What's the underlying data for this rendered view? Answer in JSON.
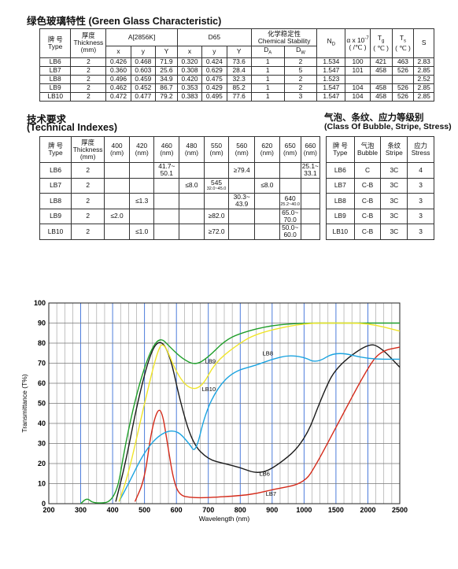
{
  "green": {
    "title": "绿色玻璃特性 (Green Glass Characteristic)",
    "h": {
      "type_cn": "牌 号",
      "type_en": "Type",
      "thick_cn": "厚度",
      "thick_en": "Thickness",
      "thick_unit": "(mm)",
      "a2856": "A[2856K]",
      "d65": "D65",
      "chem_cn": "化学稳定性",
      "chem_en": "Chemical Stability",
      "x": "x",
      "y": "y",
      "Y": "Y",
      "da": "DA",
      "dw": "DW",
      "nd": "ND",
      "alpha": "α x 10⁻⁷",
      "alpha_unit": "( /℃ )",
      "tg": "Tg",
      "tg_unit": "( ℃ )",
      "ts": "Ts",
      "ts_unit": "( ℃ )",
      "s": "S"
    },
    "rows": [
      [
        "LB6",
        "2",
        "0.426",
        "0.468",
        "71.9",
        "0.320",
        "0.424",
        "73.6",
        "1",
        "2",
        "1.534",
        "100",
        "421",
        "463",
        "2.83"
      ],
      [
        "LB7",
        "2",
        "0.360",
        "0.603",
        "25.6",
        "0.308",
        "0.629",
        "28.4",
        "1",
        "5",
        "1.547",
        "101",
        "458",
        "526",
        "2.85"
      ],
      [
        "LB8",
        "2",
        "0.496",
        "0.459",
        "34.9",
        "0.420",
        "0.475",
        "32.3",
        "1",
        "2",
        "1.523",
        "",
        "",
        "",
        "2.52"
      ],
      [
        "LB9",
        "2",
        "0.462",
        "0.452",
        "86.7",
        "0.353",
        "0.429",
        "85.2",
        "1",
        "2",
        "1.547",
        "104",
        "458",
        "526",
        "2.85"
      ],
      [
        "LB10",
        "2",
        "0.472",
        "0.477",
        "79.2",
        "0.383",
        "0.495",
        "77.6",
        "1",
        "3",
        "1.547",
        "104",
        "458",
        "526",
        "2.85"
      ]
    ]
  },
  "tech": {
    "title_cn": "技术要求",
    "title_en": "(Technical Indexes)",
    "h": {
      "type_cn": "牌 号",
      "type_en": "Type",
      "thick_cn": "厚度",
      "thick_en": "Thickness",
      "thick_unit": "(mm)"
    },
    "wavelengths": [
      "400",
      "420",
      "460",
      "480",
      "550",
      "560",
      "620",
      "650",
      "660"
    ],
    "unit": "(nm)",
    "rows": [
      {
        "type": "LB6",
        "thick": "2",
        "c400": "",
        "c420": "",
        "c460": "41.7~ 50.1",
        "c480": "",
        "c550": "",
        "c560": "≥79.4",
        "c620": "",
        "c650": "",
        "c660": "25.1~ 33.1"
      },
      {
        "type": "LB7",
        "thick": "2",
        "c400": "",
        "c420": "",
        "c460": "",
        "c480": "≤8.0",
        "c550": "545",
        "c550s": "32.0~45.0",
        "c560": "",
        "c620": "≤8.0",
        "c650": "",
        "c660": ""
      },
      {
        "type": "LB8",
        "thick": "2",
        "c400": "",
        "c420": "≤1.3",
        "c460": "",
        "c480": "",
        "c550": "",
        "c560": "30.3~ 43.9",
        "c620": "",
        "c650": "640",
        "c650s": "25.2~40.0",
        "c660": ""
      },
      {
        "type": "LB9",
        "thick": "2",
        "c400": "≤2.0",
        "c420": "",
        "c460": "",
        "c480": "",
        "c550": "≥82.0",
        "c560": "",
        "c620": "",
        "c650": "65.0~ 70.0",
        "c660": ""
      },
      {
        "type": "LB10",
        "thick": "2",
        "c400": "",
        "c420": "≤1.0",
        "c460": "",
        "c480": "",
        "c550": "≥72.0",
        "c560": "",
        "c620": "",
        "c650": "50.0~ 60.0",
        "c660": ""
      }
    ]
  },
  "bubble": {
    "title_cn": "气泡、条纹、应力等级别",
    "title_en": "(Class Of Bubble, Stripe, Stress)",
    "h": {
      "type_cn": "牌 号",
      "type_en": "Type",
      "bubble_cn": "气泡",
      "bubble_en": "Bubble",
      "stripe_cn": "条纹",
      "stripe_en": "Stripe",
      "stress_cn": "应力",
      "stress_en": "Stress"
    },
    "rows": [
      [
        "LB6",
        "C",
        "3C",
        "4"
      ],
      [
        "LB7",
        "C-B",
        "3C",
        "3"
      ],
      [
        "LB8",
        "C-B",
        "3C",
        "3"
      ],
      [
        "LB9",
        "C-B",
        "3C",
        "3"
      ],
      [
        "LB10",
        "C-B",
        "3C",
        "3"
      ]
    ]
  },
  "chart_data": {
    "type": "line",
    "xlabel": "Wavelength (nm)",
    "ylabel": "Transmittance (T%)",
    "x_ticks": [
      "200",
      "300",
      "400",
      "500",
      "600",
      "700",
      "800",
      "900",
      "1000",
      "1500",
      "2000",
      "2500"
    ],
    "y_ticks": [
      "0",
      "10",
      "20",
      "30",
      "40",
      "50",
      "60",
      "70",
      "80",
      "90",
      "100"
    ],
    "ylim": [
      0,
      100
    ],
    "grid": true,
    "series": [
      {
        "name": "LB6",
        "color": "#1a1a1a",
        "points": [
          [
            410,
            1
          ],
          [
            440,
            20
          ],
          [
            480,
            52
          ],
          [
            520,
            76
          ],
          [
            550,
            82
          ],
          [
            580,
            74
          ],
          [
            610,
            52
          ],
          [
            650,
            30
          ],
          [
            700,
            22
          ],
          [
            750,
            20
          ],
          [
            800,
            18
          ],
          [
            850,
            15
          ],
          [
            900,
            17
          ],
          [
            1000,
            30
          ],
          [
            1300,
            55
          ],
          [
            1500,
            68
          ],
          [
            2000,
            80
          ],
          [
            2200,
            78
          ],
          [
            2500,
            68
          ]
        ]
      },
      {
        "name": "LB7",
        "color": "#d42a1a",
        "points": [
          [
            470,
            1
          ],
          [
            500,
            12
          ],
          [
            520,
            35
          ],
          [
            540,
            47
          ],
          [
            555,
            46
          ],
          [
            570,
            32
          ],
          [
            590,
            12
          ],
          [
            610,
            4
          ],
          [
            650,
            3
          ],
          [
            700,
            3
          ],
          [
            800,
            4
          ],
          [
            850,
            5
          ],
          [
            900,
            7
          ],
          [
            1000,
            10
          ],
          [
            1200,
            20
          ],
          [
            1500,
            38
          ],
          [
            2000,
            68
          ],
          [
            2200,
            76
          ],
          [
            2500,
            78
          ]
        ]
      },
      {
        "name": "LB8",
        "color": "#1ba3e0",
        "points": [
          [
            420,
            1
          ],
          [
            450,
            10
          ],
          [
            500,
            26
          ],
          [
            550,
            35
          ],
          [
            600,
            37
          ],
          [
            640,
            30
          ],
          [
            660,
            25
          ],
          [
            690,
            45
          ],
          [
            730,
            58
          ],
          [
            780,
            66
          ],
          [
            850,
            69
          ],
          [
            900,
            72
          ],
          [
            950,
            74
          ],
          [
            1000,
            73
          ],
          [
            1200,
            70
          ],
          [
            1500,
            76
          ],
          [
            2000,
            72
          ],
          [
            2500,
            72
          ]
        ]
      },
      {
        "name": "LB9",
        "color": "#1f9e2a",
        "points": [
          [
            300,
            0
          ],
          [
            320,
            3
          ],
          [
            340,
            0
          ],
          [
            410,
            1
          ],
          [
            440,
            30
          ],
          [
            480,
            58
          ],
          [
            520,
            77
          ],
          [
            550,
            83
          ],
          [
            580,
            78
          ],
          [
            620,
            72
          ],
          [
            660,
            69
          ],
          [
            700,
            73
          ],
          [
            750,
            81
          ],
          [
            800,
            85
          ],
          [
            900,
            89
          ],
          [
            1000,
            90
          ],
          [
            1500,
            90
          ],
          [
            2000,
            90
          ],
          [
            2500,
            90
          ]
        ]
      },
      {
        "name": "LB10",
        "color": "#f0e52a",
        "points": [
          [
            420,
            1
          ],
          [
            450,
            15
          ],
          [
            500,
            50
          ],
          [
            540,
            76
          ],
          [
            560,
            81
          ],
          [
            600,
            65
          ],
          [
            640,
            57
          ],
          [
            680,
            58
          ],
          [
            720,
            70
          ],
          [
            780,
            78
          ],
          [
            850,
            85
          ],
          [
            1000,
            90
          ],
          [
            1500,
            90
          ],
          [
            2000,
            90
          ],
          [
            2500,
            86
          ]
        ]
      }
    ]
  }
}
